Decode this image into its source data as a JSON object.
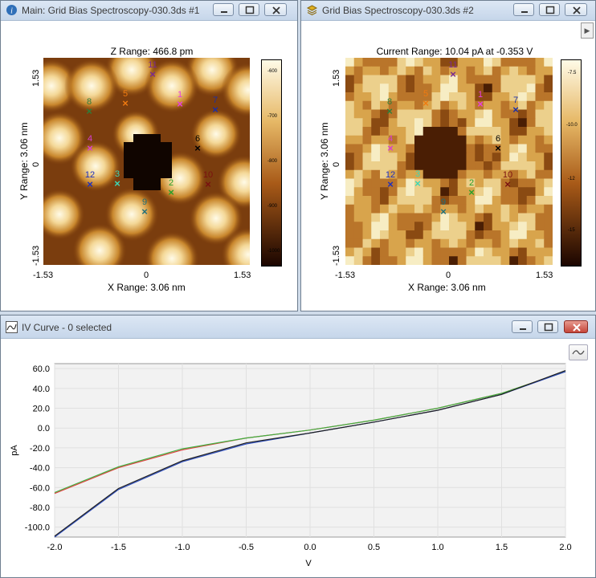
{
  "window1": {
    "title": "Main: Grid Bias Spectroscopy-030.3ds #1",
    "map_title": "Z Range:  466.8 pm",
    "x_range": "X Range:  3.06 nm",
    "y_range": "Y Range:  3.06 nm",
    "x_ticks": [
      "-1.53",
      "0",
      "1.53"
    ],
    "y_ticks": [
      "1.53",
      "0",
      "-1.53"
    ],
    "colorbar_ticks": [
      "-600",
      "-700",
      "-800",
      "-900",
      "-1000"
    ]
  },
  "window2": {
    "title": "Grid Bias Spectroscopy-030.3ds #2",
    "map_title": "Current Range:  10.04 pA at -0.353 V",
    "x_range": "X Range:  3.06 nm",
    "y_range": "Y Range:  3.06 nm",
    "x_ticks": [
      "-1.53",
      "0",
      "1.53"
    ],
    "y_ticks": [
      "1.53",
      "0",
      "-1.53"
    ],
    "colorbar_ticks": [
      "-7.5",
      "-10.0",
      "-12",
      "-15"
    ]
  },
  "points": [
    {
      "label": "1",
      "color": "#e83ee0"
    },
    {
      "label": "2",
      "color": "#2aa02a"
    },
    {
      "label": "3",
      "color": "#3fd6b4"
    },
    {
      "label": "4",
      "color": "#d63fd0"
    },
    {
      "label": "5",
      "color": "#f07a10"
    },
    {
      "label": "6",
      "color": "#000000"
    },
    {
      "label": "7",
      "color": "#1a2fa8"
    },
    {
      "label": "8",
      "color": "#2e7d3a"
    },
    {
      "label": "9",
      "color": "#1f6f7a"
    },
    {
      "label": "10",
      "color": "#7a1010"
    },
    {
      "label": "11",
      "color": "#7a2a8f"
    },
    {
      "label": "12",
      "color": "#1d2fc0"
    }
  ],
  "iv_window": {
    "title": "IV Curve - 0 selected",
    "xlabel": "V",
    "ylabel": "pA"
  },
  "chart_data": {
    "type": "line",
    "title": "",
    "xlabel": "V",
    "ylabel": "pA",
    "xlim": [
      -2.0,
      2.0
    ],
    "ylim": [
      -110,
      65
    ],
    "x_ticks": [
      -2.0,
      -1.5,
      -1.0,
      -0.5,
      0.0,
      0.5,
      1.0,
      1.5,
      2.0
    ],
    "y_ticks": [
      60.0,
      40.0,
      20.0,
      0.0,
      -20.0,
      -40.0,
      -60.0,
      -80.0,
      -100.0
    ],
    "grid": true,
    "series": [
      {
        "color": "#e04040",
        "x": [
          -2.0,
          -1.5,
          -1.0,
          -0.5,
          0.0,
          0.5,
          1.0,
          1.5,
          2.0
        ],
        "y": [
          -66,
          -40,
          -22,
          -10,
          -2,
          8,
          20,
          35,
          57
        ]
      },
      {
        "color": "#40b040",
        "x": [
          -2.0,
          -1.5,
          -1.0,
          -0.5,
          0.0,
          0.5,
          1.0,
          1.5,
          2.0
        ],
        "y": [
          -65,
          -39,
          -21,
          -10,
          -2,
          8,
          20,
          35,
          57
        ]
      },
      {
        "color": "#3050c0",
        "x": [
          -2.0,
          -1.5,
          -1.0,
          -0.5,
          0.0,
          0.5,
          1.0,
          1.5,
          2.0
        ],
        "y": [
          -110,
          -62,
          -34,
          -16,
          -5,
          6,
          18,
          34,
          57
        ]
      },
      {
        "color": "#202020",
        "x": [
          -2.0,
          -1.5,
          -1.0,
          -0.5,
          0.0,
          0.5,
          1.0,
          1.5,
          2.0
        ],
        "y": [
          -109,
          -61,
          -33,
          -15,
          -5,
          6,
          18,
          34,
          58
        ]
      }
    ]
  }
}
